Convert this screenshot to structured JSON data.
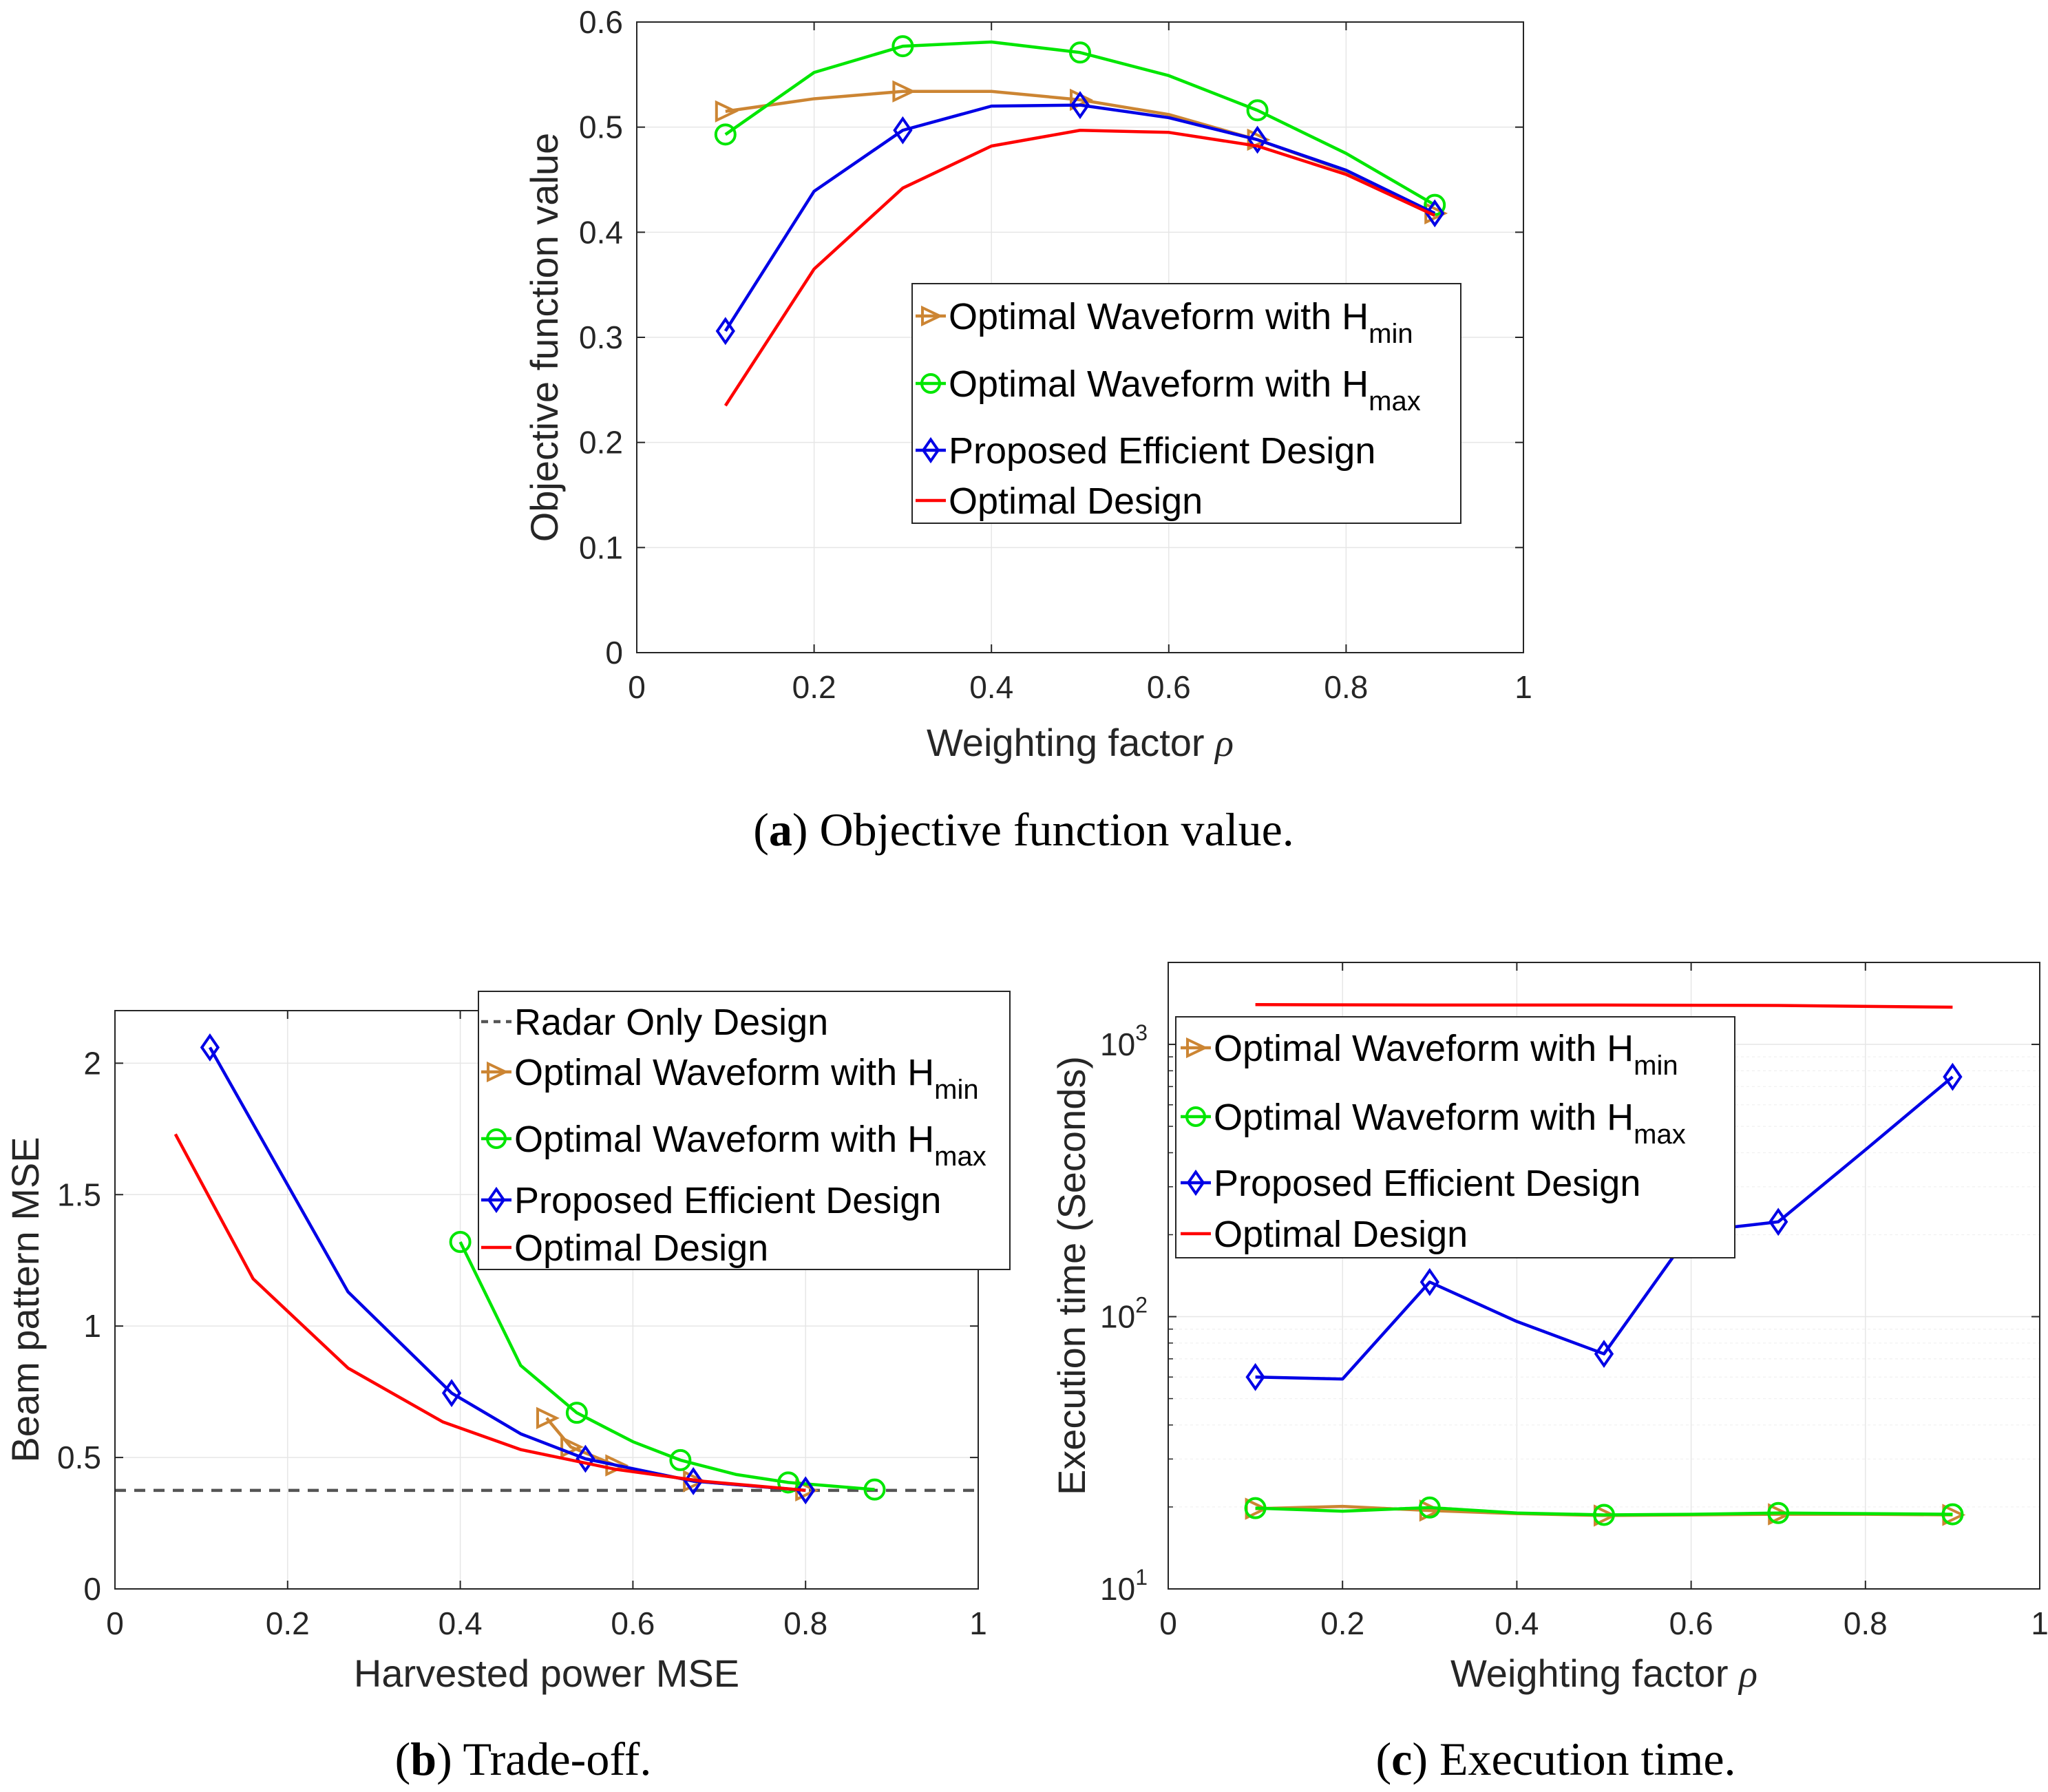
{
  "chart_data": [
    {
      "id": "a",
      "type": "line",
      "xlabel": "Weighting factor",
      "xlabel_symbol": "ρ",
      "ylabel": "Objective function value",
      "xlim": [
        0,
        1
      ],
      "ylim": [
        0,
        0.6
      ],
      "xticks": [
        "0",
        "0.2",
        "0.4",
        "0.6",
        "0.8",
        "1"
      ],
      "yticks": [
        "0",
        "0.1",
        "0.2",
        "0.3",
        "0.4",
        "0.5",
        "0.6"
      ],
      "grid": true,
      "legend_position": "center-right",
      "series": [
        {
          "name": "Optimal Waveform with H",
          "sub": "min",
          "color": "#cc8533",
          "marker": "triangle-right",
          "x": [
            0.1,
            0.2,
            0.3,
            0.4,
            0.5,
            0.6,
            0.7,
            0.8,
            0.9
          ],
          "y": [
            0.515,
            0.527,
            0.534,
            0.534,
            0.526,
            0.512,
            0.488,
            0.458,
            0.418
          ],
          "marker_x": [
            0.1,
            0.3,
            0.5,
            0.7,
            0.9
          ]
        },
        {
          "name": "Optimal Waveform with H",
          "sub": "max",
          "color": "#00e600",
          "marker": "circle",
          "x": [
            0.1,
            0.2,
            0.3,
            0.4,
            0.5,
            0.6,
            0.7,
            0.8,
            0.9
          ],
          "y": [
            0.493,
            0.552,
            0.577,
            0.581,
            0.571,
            0.549,
            0.516,
            0.475,
            0.426
          ],
          "marker_x": [
            0.1,
            0.3,
            0.5,
            0.7,
            0.9
          ]
        },
        {
          "name": "Proposed Efficient Design",
          "sub": "",
          "color": "#0000e6",
          "marker": "diamond",
          "x": [
            0.1,
            0.2,
            0.3,
            0.4,
            0.5,
            0.6,
            0.7,
            0.8,
            0.9
          ],
          "y": [
            0.306,
            0.439,
            0.497,
            0.52,
            0.521,
            0.509,
            0.488,
            0.459,
            0.418
          ],
          "marker_x": [
            0.1,
            0.3,
            0.5,
            0.7,
            0.9
          ]
        },
        {
          "name": "Optimal Design",
          "sub": "",
          "color": "#ff0000",
          "marker": "none",
          "x": [
            0.1,
            0.2,
            0.3,
            0.4,
            0.5,
            0.6,
            0.7,
            0.8,
            0.9
          ],
          "y": [
            0.235,
            0.365,
            0.442,
            0.482,
            0.497,
            0.495,
            0.482,
            0.455,
            0.416
          ],
          "marker_x": []
        }
      ]
    },
    {
      "id": "b",
      "type": "line",
      "xlabel": "Harvested power MSE",
      "ylabel": "Beam pattern MSE",
      "xlim": [
        0,
        1
      ],
      "ylim": [
        0,
        2.2
      ],
      "xticks": [
        "0",
        "0.2",
        "0.4",
        "0.6",
        "0.8",
        "1"
      ],
      "yticks": [
        "0",
        "0.5",
        "1",
        "1.5",
        "2"
      ],
      "grid": true,
      "legend_position": "top-right",
      "series": [
        {
          "name": "Radar Only Design",
          "sub": "",
          "color": "#555555",
          "marker": "none",
          "dashed": true,
          "x": [
            0,
            1
          ],
          "y": [
            0.375,
            0.375
          ],
          "marker_x": []
        },
        {
          "name": "Optimal Waveform with H",
          "sub": "min",
          "color": "#cc8533",
          "marker": "triangle-right",
          "x": [
            0.5,
            0.528,
            0.58,
            0.67,
            0.8
          ],
          "y": [
            0.65,
            0.54,
            0.47,
            0.41,
            0.375
          ],
          "marker_x": [
            0.5,
            0.528,
            0.58,
            0.67,
            0.8
          ]
        },
        {
          "name": "Optimal Waveform with H",
          "sub": "max",
          "color": "#00e600",
          "marker": "circle",
          "x": [
            0.4,
            0.47,
            0.535,
            0.6,
            0.655,
            0.72,
            0.78,
            0.88
          ],
          "y": [
            1.32,
            0.85,
            0.67,
            0.56,
            0.49,
            0.435,
            0.405,
            0.378
          ],
          "marker_x": [
            0.4,
            0.535,
            0.655,
            0.78,
            0.88
          ]
        },
        {
          "name": "Proposed Efficient Design",
          "sub": "",
          "color": "#0000e6",
          "marker": "diamond",
          "x": [
            0.11,
            0.27,
            0.39,
            0.47,
            0.545,
            0.67,
            0.8
          ],
          "y": [
            2.06,
            1.13,
            0.745,
            0.59,
            0.495,
            0.41,
            0.375
          ],
          "marker_x": [
            0.11,
            0.39,
            0.545,
            0.67,
            0.8
          ]
        },
        {
          "name": "Optimal Design",
          "sub": "",
          "color": "#ff0000",
          "marker": "none",
          "x": [
            0.07,
            0.16,
            0.27,
            0.38,
            0.47,
            0.58,
            0.68,
            0.8
          ],
          "y": [
            1.73,
            1.18,
            0.84,
            0.635,
            0.53,
            0.455,
            0.41,
            0.375
          ],
          "marker_x": []
        }
      ]
    },
    {
      "id": "c",
      "type": "line",
      "xlabel": "Weighting factor",
      "xlabel_symbol": "ρ",
      "ylabel": "Execution time (Seconds)",
      "yscale": "log",
      "xlim": [
        0,
        1
      ],
      "ylim": [
        10,
        2000
      ],
      "xticks": [
        "0",
        "0.2",
        "0.4",
        "0.6",
        "0.8",
        "1"
      ],
      "yticks": [
        {
          "base": "10",
          "exp": "1"
        },
        {
          "base": "10",
          "exp": "2"
        },
        {
          "base": "10",
          "exp": "3"
        }
      ],
      "grid": true,
      "legend_position": "top-left",
      "series": [
        {
          "name": "Optimal Waveform with H",
          "sub": "min",
          "color": "#cc8533",
          "marker": "triangle-right",
          "x": [
            0.1,
            0.2,
            0.3,
            0.4,
            0.5,
            0.6,
            0.7,
            0.8,
            0.9
          ],
          "y": [
            19.7,
            20.1,
            19.4,
            18.9,
            18.6,
            18.7,
            18.8,
            18.8,
            18.7
          ],
          "marker_x": [
            0.1,
            0.3,
            0.5,
            0.7,
            0.9
          ]
        },
        {
          "name": "Optimal Waveform with H",
          "sub": "max",
          "color": "#00e600",
          "marker": "circle",
          "x": [
            0.1,
            0.2,
            0.3,
            0.4,
            0.5,
            0.6,
            0.7,
            0.8,
            0.9
          ],
          "y": [
            19.8,
            19.3,
            19.9,
            19.0,
            18.7,
            18.8,
            19.0,
            18.9,
            18.8
          ],
          "marker_x": [
            0.1,
            0.3,
            0.5,
            0.7,
            0.9
          ]
        },
        {
          "name": "Proposed Efficient Design",
          "sub": "",
          "color": "#0000e6",
          "marker": "diamond",
          "x": [
            0.1,
            0.2,
            0.3,
            0.4,
            0.5,
            0.6,
            0.7,
            0.8,
            0.9
          ],
          "y": [
            60,
            59,
            134,
            96,
            73,
            205,
            223,
            410,
            760
          ],
          "marker_x": [
            0.1,
            0.3,
            0.5,
            0.7,
            0.9
          ]
        },
        {
          "name": "Optimal Design",
          "sub": "",
          "color": "#ff0000",
          "marker": "none",
          "x": [
            0.1,
            0.3,
            0.5,
            0.7,
            0.9
          ],
          "y": [
            1400,
            1395,
            1395,
            1390,
            1370
          ],
          "marker_x": []
        }
      ]
    }
  ],
  "captions": {
    "a": {
      "tag": "a",
      "text": "Objective function value."
    },
    "b": {
      "tag": "b",
      "text": "Trade-off."
    },
    "c": {
      "tag": "c",
      "text": "Execution time."
    }
  }
}
